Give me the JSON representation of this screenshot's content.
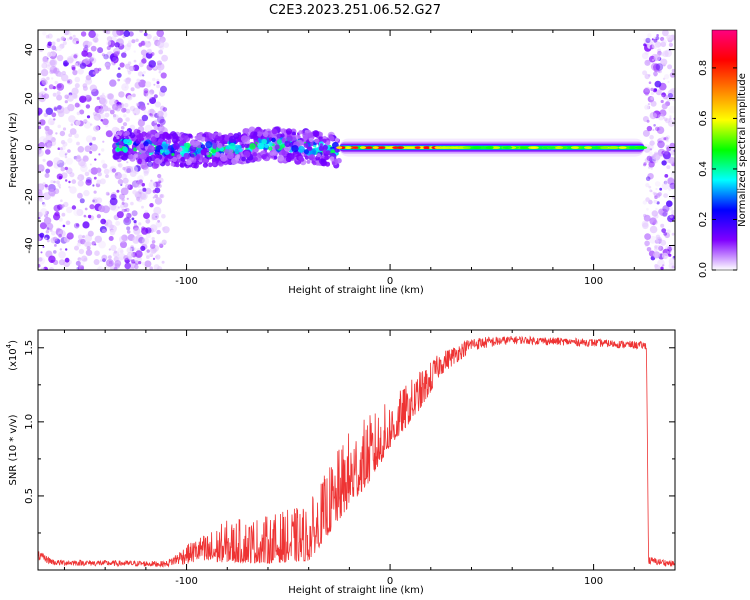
{
  "figure": {
    "title": "C2E3.2023.251.06.52.G27"
  },
  "chart_data": [
    {
      "type": "heatmap",
      "title": "C2E3.2023.251.06.52.G27",
      "xlabel": "Height of straight line (km)",
      "ylabel": "Frequency (Hz)",
      "xlim": [
        -173,
        140
      ],
      "ylim": [
        -50,
        48
      ],
      "x_ticks": [
        -100,
        0,
        100
      ],
      "x_tick_labels": [
        "-100",
        "0",
        "100"
      ],
      "y_ticks": [
        -40,
        -20,
        0,
        20,
        40
      ],
      "y_tick_labels": [
        "-40",
        "-20",
        "0",
        "20",
        "40"
      ],
      "colorbar": {
        "label": "Normalized spectral amplitude",
        "range": [
          0,
          0.95
        ],
        "ticks": [
          0.0,
          0.2,
          0.4,
          0.6,
          0.8
        ],
        "tick_labels": [
          "0.0",
          "0.2",
          "0.4",
          "0.6",
          "0.8"
        ],
        "colormap": [
          "#ffffff",
          "#8000ff",
          "#0000ff",
          "#00ffff",
          "#00ff00",
          "#ffff00",
          "#ff8000",
          "#ff0000",
          "#ff0080"
        ]
      },
      "segments": [
        {
          "name": "noise-left",
          "x_range": [
            -173,
            -110
          ],
          "y_range": [
            -50,
            48
          ],
          "amplitude": 0.08
        },
        {
          "name": "turbulent-band",
          "x_range": [
            -135,
            -25
          ],
          "y_range": [
            -8,
            6
          ],
          "amplitude": 0.35
        },
        {
          "name": "stable-band",
          "x_range": [
            -25,
            125
          ],
          "y_range": [
            -2,
            2
          ],
          "amplitude": 0.55
        },
        {
          "name": "noise-right",
          "x_range": [
            125,
            140
          ],
          "y_range": [
            -50,
            48
          ],
          "amplitude": 0.08
        }
      ]
    },
    {
      "type": "line",
      "xlabel": "Height of straight line (km)",
      "ylabel": "SNR (10 * v/v)",
      "y_multiplier_label": "(x10",
      "y_multiplier_exp": "4",
      "y_multiplier_suffix": ")",
      "xlim": [
        -173,
        140
      ],
      "ylim": [
        0,
        1.62
      ],
      "x_ticks": [
        -100,
        0,
        100
      ],
      "x_tick_labels": [
        "-100",
        "0",
        "100"
      ],
      "y_ticks": [
        0.5,
        1.0,
        1.5
      ],
      "y_tick_labels": [
        "0.5",
        "1.0",
        "1.5"
      ],
      "line_color": "#ee3333",
      "envelope": [
        {
          "x": -173,
          "base": 0.08,
          "amp": 0.05
        },
        {
          "x": -165,
          "base": 0.04,
          "amp": 0.03
        },
        {
          "x": -110,
          "base": 0.03,
          "amp": 0.03
        },
        {
          "x": -100,
          "base": 0.07,
          "amp": 0.1
        },
        {
          "x": -80,
          "base": 0.12,
          "amp": 0.22
        },
        {
          "x": -60,
          "base": 0.12,
          "amp": 0.25
        },
        {
          "x": -40,
          "base": 0.15,
          "amp": 0.3
        },
        {
          "x": -30,
          "base": 0.35,
          "amp": 0.35
        },
        {
          "x": -20,
          "base": 0.55,
          "amp": 0.4
        },
        {
          "x": -10,
          "base": 0.7,
          "amp": 0.35
        },
        {
          "x": 0,
          "base": 0.9,
          "amp": 0.25
        },
        {
          "x": 15,
          "base": 1.15,
          "amp": 0.2
        },
        {
          "x": 25,
          "base": 1.35,
          "amp": 0.12
        },
        {
          "x": 40,
          "base": 1.5,
          "amp": 0.07
        },
        {
          "x": 60,
          "base": 1.54,
          "amp": 0.04
        },
        {
          "x": 100,
          "base": 1.52,
          "amp": 0.04
        },
        {
          "x": 126,
          "base": 1.5,
          "amp": 0.04
        },
        {
          "x": 127,
          "base": 0.05,
          "amp": 0.04
        },
        {
          "x": 140,
          "base": 0.03,
          "amp": 0.03
        }
      ]
    }
  ]
}
